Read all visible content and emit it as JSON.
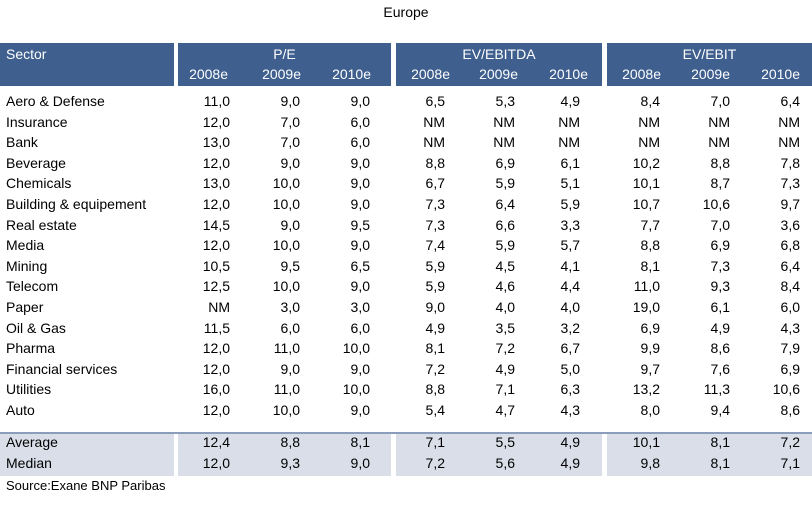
{
  "title": "Europe",
  "header": {
    "sector_label": "Sector",
    "groups": [
      "P/E",
      "EV/EBITDA",
      "EV/EBIT"
    ],
    "years": [
      "2008e",
      "2009e",
      "2010e"
    ]
  },
  "rows": [
    {
      "sector": "Aero & Defense",
      "v": [
        "11,0",
        "9,0",
        "9,0",
        "6,5",
        "5,3",
        "4,9",
        "8,4",
        "7,0",
        "6,4"
      ]
    },
    {
      "sector": "Insurance",
      "v": [
        "12,0",
        "7,0",
        "6,0",
        "NM",
        "NM",
        "NM",
        "NM",
        "NM",
        "NM"
      ]
    },
    {
      "sector": "Bank",
      "v": [
        "13,0",
        "7,0",
        "6,0",
        "NM",
        "NM",
        "NM",
        "NM",
        "NM",
        "NM"
      ]
    },
    {
      "sector": "Beverage",
      "v": [
        "12,0",
        "9,0",
        "9,0",
        "8,8",
        "6,9",
        "6,1",
        "10,2",
        "8,8",
        "7,8"
      ]
    },
    {
      "sector": "Chemicals",
      "v": [
        "13,0",
        "10,0",
        "9,0",
        "6,7",
        "5,9",
        "5,1",
        "10,1",
        "8,7",
        "7,3"
      ]
    },
    {
      "sector": "Building & equipement",
      "v": [
        "12,0",
        "10,0",
        "9,0",
        "7,3",
        "6,4",
        "5,9",
        "10,7",
        "10,6",
        "9,7"
      ]
    },
    {
      "sector": "Real estate",
      "v": [
        "14,5",
        "9,0",
        "9,5",
        "7,3",
        "6,6",
        "3,3",
        "7,7",
        "7,0",
        "3,6"
      ]
    },
    {
      "sector": "Media",
      "v": [
        "12,0",
        "10,0",
        "9,0",
        "7,4",
        "5,9",
        "5,7",
        "8,8",
        "6,9",
        "6,8"
      ]
    },
    {
      "sector": "Mining",
      "v": [
        "10,5",
        "9,5",
        "6,5",
        "5,9",
        "4,5",
        "4,1",
        "8,1",
        "7,3",
        "6,4"
      ]
    },
    {
      "sector": "Telecom",
      "v": [
        "12,5",
        "10,0",
        "9,0",
        "5,9",
        "4,6",
        "4,4",
        "11,0",
        "9,3",
        "8,4"
      ]
    },
    {
      "sector": "Paper",
      "v": [
        "NM",
        "3,0",
        "3,0",
        "9,0",
        "4,0",
        "4,0",
        "19,0",
        "6,1",
        "6,0"
      ]
    },
    {
      "sector": "Oil & Gas",
      "v": [
        "11,5",
        "6,0",
        "6,0",
        "4,9",
        "3,5",
        "3,2",
        "6,9",
        "4,9",
        "4,3"
      ]
    },
    {
      "sector": "Pharma",
      "v": [
        "12,0",
        "11,0",
        "10,0",
        "8,1",
        "7,2",
        "6,7",
        "9,9",
        "8,6",
        "7,9"
      ]
    },
    {
      "sector": "Financial services",
      "v": [
        "12,0",
        "9,0",
        "9,0",
        "7,2",
        "4,9",
        "5,0",
        "9,7",
        "7,6",
        "6,9"
      ]
    },
    {
      "sector": "Utilities",
      "v": [
        "16,0",
        "11,0",
        "10,0",
        "8,8",
        "7,1",
        "6,3",
        "13,2",
        "11,3",
        "10,6"
      ]
    },
    {
      "sector": "Auto",
      "v": [
        "12,0",
        "10,0",
        "9,0",
        "5,4",
        "4,7",
        "4,3",
        "8,0",
        "9,4",
        "8,6"
      ]
    }
  ],
  "summary": [
    {
      "sector": "Average",
      "v": [
        "12,4",
        "8,8",
        "8,1",
        "7,1",
        "5,5",
        "4,9",
        "10,1",
        "8,1",
        "7,2"
      ]
    },
    {
      "sector": "Median",
      "v": [
        "12,0",
        "9,3",
        "9,0",
        "7,2",
        "5,6",
        "4,9",
        "9,8",
        "8,1",
        "7,1"
      ]
    }
  ],
  "source": "Source:Exane BNP Paribas"
}
